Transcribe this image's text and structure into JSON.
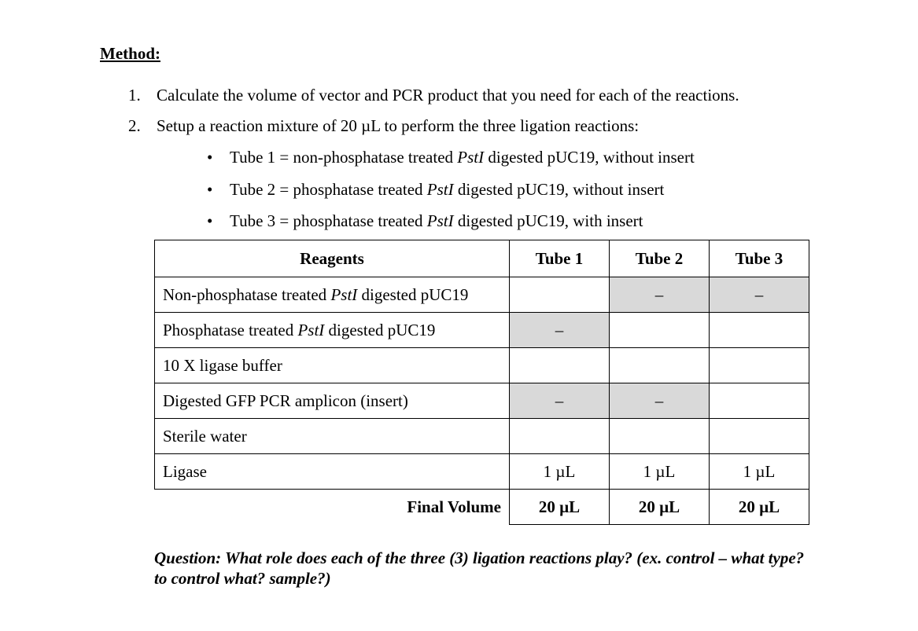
{
  "heading": "Method:",
  "steps": [
    {
      "num": "1.",
      "text": "Calculate the volume of vector and PCR product that you need for each of the reactions."
    },
    {
      "num": "2.",
      "text": "Setup a reaction mixture of 20 µL to perform the three ligation reactions:"
    }
  ],
  "bullets": [
    {
      "pre": "Tube 1 = non-phosphatase treated ",
      "italic": "PstI",
      "post": " digested pUC19, without insert"
    },
    {
      "pre": "Tube 2 = phosphatase treated ",
      "italic": "PstI",
      "post": " digested pUC19, without insert"
    },
    {
      "pre": "Tube 3 = phosphatase treated ",
      "italic": "PstI",
      "post": " digested pUC19, with insert"
    }
  ],
  "table": {
    "headers": [
      "Reagents",
      "Tube 1",
      "Tube 2",
      "Tube 3"
    ],
    "rows": [
      {
        "pre": "Non-phosphatase treated ",
        "italic": "PstI",
        "post": " digested pUC19",
        "cells": [
          "",
          "–",
          "–"
        ]
      },
      {
        "pre": "Phosphatase treated ",
        "italic": "PstI",
        "post": " digested pUC19",
        "cells": [
          "–",
          "",
          ""
        ]
      },
      {
        "pre": "10 X ligase buffer",
        "italic": "",
        "post": "",
        "cells": [
          "",
          "",
          ""
        ]
      },
      {
        "pre": "Digested GFP PCR amplicon (insert)",
        "italic": "",
        "post": "",
        "cells": [
          "–",
          "–",
          ""
        ]
      },
      {
        "pre": "Sterile water",
        "italic": "",
        "post": "",
        "cells": [
          "",
          "",
          ""
        ]
      },
      {
        "pre": "Ligase",
        "italic": "",
        "post": "",
        "cells": [
          "1 µL",
          "1 µL",
          "1 µL"
        ]
      }
    ],
    "final_label": "Final Volume",
    "final_values": [
      "20 µL",
      "20 µL",
      "20 µL"
    ],
    "shaded_color": "#d9d9d9"
  },
  "question": "Question: What role does each of the three (3) ligation reactions play? (ex. control – what type?  to control what?  sample?)"
}
